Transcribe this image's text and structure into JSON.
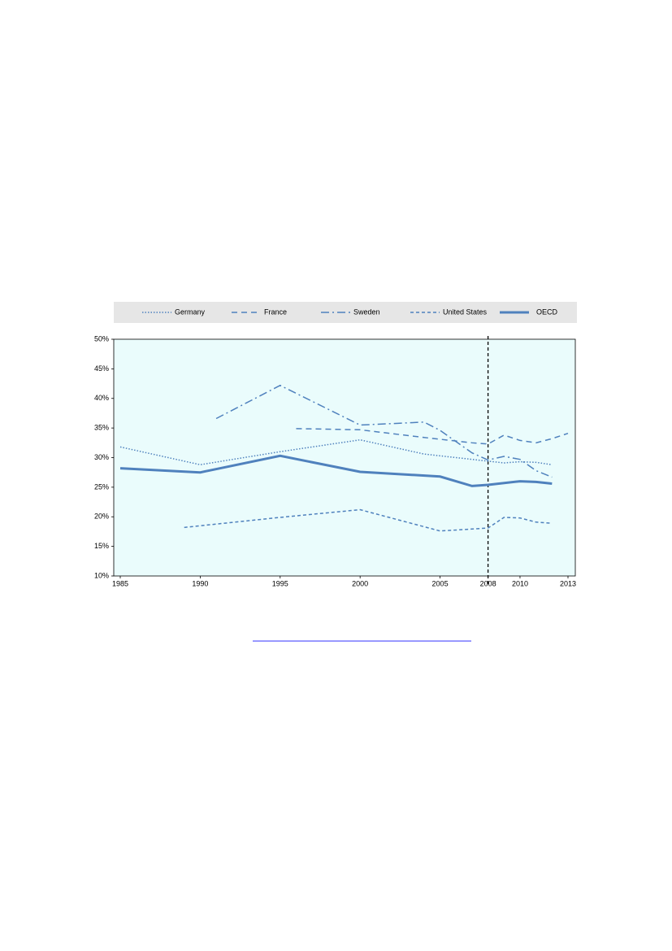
{
  "chart_data": {
    "type": "line",
    "xlim": [
      1984.5,
      2013.5
    ],
    "xticks": [
      1985,
      1990,
      1995,
      2000,
      2005,
      2008,
      2010,
      2013
    ],
    "ylim": [
      10,
      50
    ],
    "yticks": [
      {
        "value": 10,
        "label": "10%"
      },
      {
        "value": 15,
        "label": "15%"
      },
      {
        "value": 20,
        "label": "20%"
      },
      {
        "value": 25,
        "label": "25%"
      },
      {
        "value": 30,
        "label": "30%"
      },
      {
        "value": 35,
        "label": "35%"
      },
      {
        "value": 40,
        "label": "40%"
      },
      {
        "value": 45,
        "label": "45%"
      },
      {
        "value": 50,
        "label": "50%"
      }
    ],
    "vline": 2008,
    "series": [
      {
        "name": "Germany",
        "color": "#4f81bd",
        "dash": "dotted",
        "x": [
          1985,
          1990,
          1995,
          2000,
          2004,
          2005,
          2008,
          2009,
          2010,
          2011,
          2012
        ],
        "values": [
          31.8,
          28.8,
          31.0,
          33.0,
          30.6,
          30.3,
          29.4,
          29.1,
          29.3,
          29.2,
          28.8
        ]
      },
      {
        "name": "France",
        "color": "#4f81bd",
        "dash": "dashed",
        "x": [
          1996,
          2000,
          2004,
          2005,
          2007,
          2008,
          2009,
          2010,
          2011,
          2012,
          2013
        ],
        "values": [
          34.9,
          34.7,
          33.4,
          33.1,
          32.5,
          32.3,
          33.8,
          32.9,
          32.5,
          33.2,
          34.1
        ]
      },
      {
        "name": "Sweden",
        "color": "#4f81bd",
        "dash": "dashdot",
        "x": [
          1991,
          1995,
          2000,
          2004,
          2005,
          2007,
          2008,
          2009,
          2010,
          2011,
          2012
        ],
        "values": [
          36.6,
          42.2,
          35.5,
          36.0,
          34.6,
          30.8,
          29.6,
          30.2,
          29.7,
          27.8,
          26.7
        ]
      },
      {
        "name": "United States",
        "color": "#4f81bd",
        "dash": "shortdash",
        "x": [
          1989,
          1995,
          2000,
          2005,
          2008,
          2009,
          2010,
          2011,
          2012
        ],
        "values": [
          18.2,
          19.9,
          21.2,
          17.6,
          18.1,
          19.9,
          19.8,
          19.1,
          18.9
        ]
      },
      {
        "name": "OECD",
        "color": "#4f81bd",
        "dash": "solid",
        "x": [
          1985,
          1990,
          1995,
          2000,
          2005,
          2007,
          2008,
          2010,
          2011,
          2012
        ],
        "values": [
          28.2,
          27.5,
          30.3,
          27.6,
          26.8,
          25.2,
          25.4,
          26.0,
          25.9,
          25.6
        ]
      }
    ]
  }
}
